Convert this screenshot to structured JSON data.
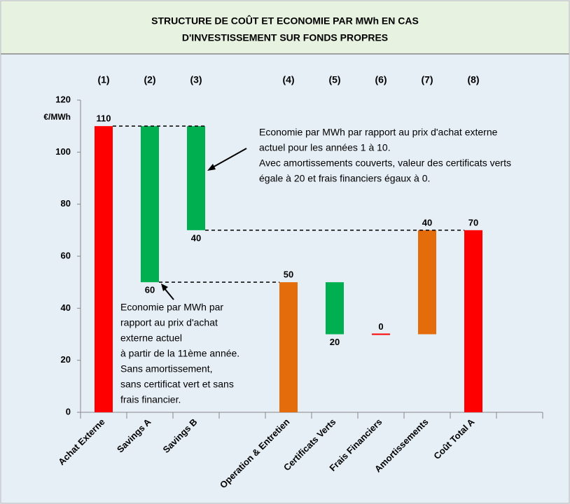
{
  "chart_data": {
    "type": "waterfall",
    "title": [
      "STRUCTURE DE COÛT ET ECONOMIE PAR MWh EN CAS",
      "D'INVESTISSEMENT SUR FONDS PROPRES"
    ],
    "y_unit": "€/MWh",
    "column_numbers": [
      "(1)",
      "(2)",
      "(3)",
      null,
      "(4)",
      "(5)",
      "(6)",
      "(7)",
      "(8)",
      null
    ],
    "categories": [
      "Achat Externe",
      "Savings A",
      "Savings B",
      null,
      "Operation & Entretien",
      "Certificats Verts",
      "Frais Financiers",
      "Amortissements",
      "Coût Total A",
      null
    ],
    "values": [
      110,
      60,
      40,
      null,
      50,
      20,
      0,
      40,
      70,
      null
    ],
    "bases": [
      0,
      50,
      70,
      null,
      0,
      30,
      30,
      30,
      0,
      null
    ],
    "colors": [
      "#ff0000",
      "#00b050",
      "#00b050",
      null,
      "#e46c0a",
      "#00b050",
      "#ff0000",
      "#e46c0a",
      "#ff0000",
      null
    ],
    "value_label_position": [
      "above",
      "below",
      "below",
      null,
      "above",
      "below",
      "above",
      "above",
      "above",
      null
    ],
    "connectors": [
      [
        0,
        "top",
        2
      ],
      [
        2,
        "bottom",
        8
      ],
      [
        1,
        "bottom",
        4
      ]
    ],
    "ylim": [
      0,
      120
    ],
    "yticks": [
      0,
      20,
      40,
      60,
      80,
      100,
      120
    ],
    "annotations": [
      [
        "Economie par MWh par rapport au prix d'achat externe",
        "actuel pour les années 1 à 10.",
        "Avec amortissements couverts, valeur des certificats verts",
        "égale à 20 et frais financiers égaux à 0."
      ],
      [
        "Economie par MWh par",
        "rapport au prix d'achat",
        "externe actuel",
        "à partir de la 11ème année.",
        "Sans amortissement,",
        "sans certificat vert et sans",
        "frais financier."
      ]
    ]
  }
}
